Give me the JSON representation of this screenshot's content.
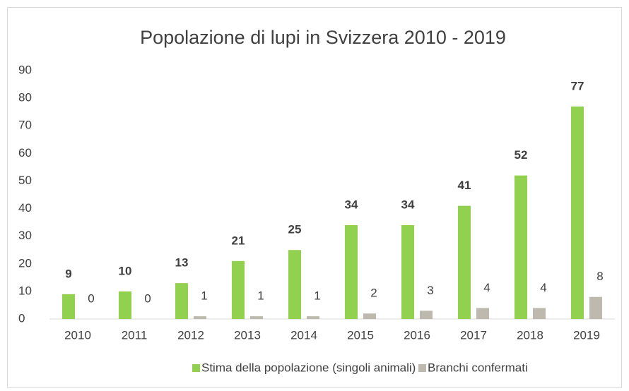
{
  "chart_data": {
    "type": "bar",
    "title": "Popolazione di lupi in Svizzera 2010 - 2019",
    "categories": [
      "2010",
      "2011",
      "2012",
      "2013",
      "2014",
      "2015",
      "2016",
      "2017",
      "2018",
      "2019"
    ],
    "series": [
      {
        "name": "Stima della popolazione (singoli animali)",
        "color": "#92d050",
        "values": [
          9,
          10,
          13,
          21,
          25,
          34,
          34,
          41,
          52,
          77
        ]
      },
      {
        "name": "Branchi confermati",
        "color": "#bdb9ae",
        "values": [
          0,
          0,
          1,
          1,
          1,
          2,
          3,
          4,
          4,
          8
        ]
      }
    ],
    "ylim": [
      0,
      90
    ],
    "yticks": [
      0,
      10,
      20,
      30,
      40,
      50,
      60,
      70,
      80,
      90
    ],
    "grid": false,
    "legend": "bottom"
  }
}
